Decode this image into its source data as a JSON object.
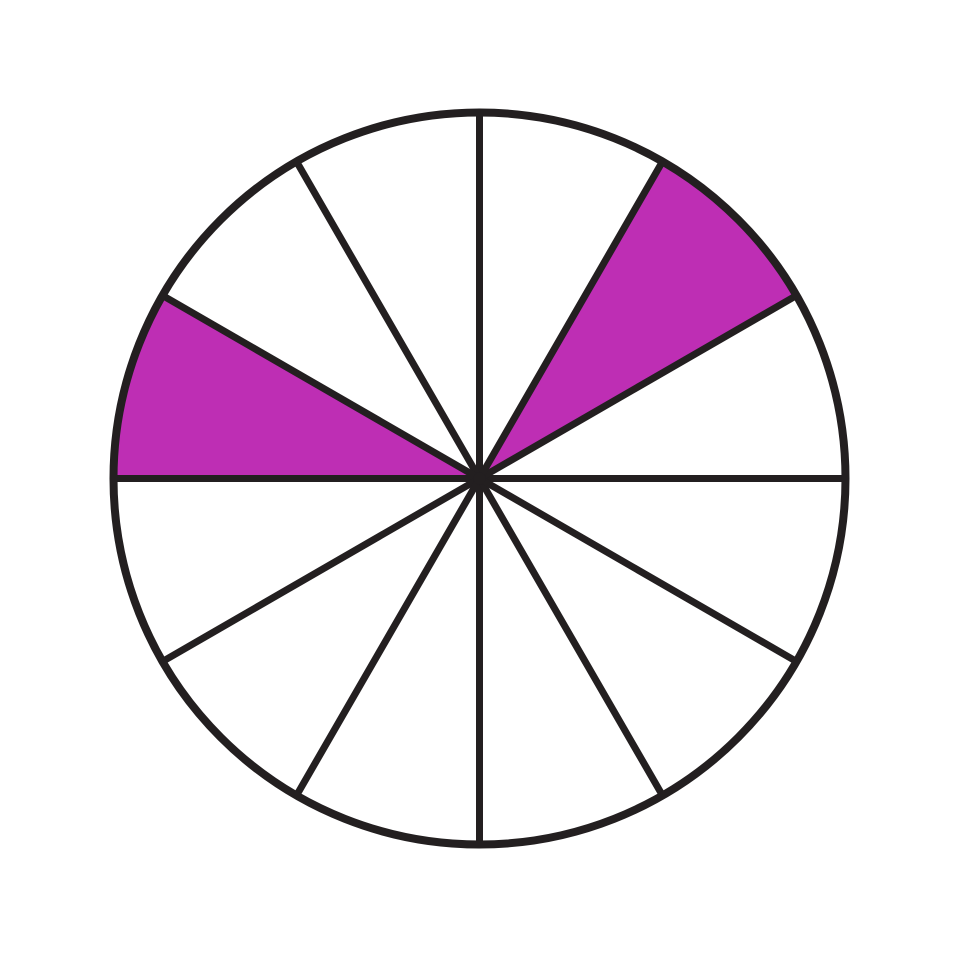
{
  "fraction_circle": {
    "total_parts": 12,
    "shaded_parts": 2,
    "shaded_sectors": [
      1,
      5
    ],
    "colors": {
      "shaded": "#BE2EB4",
      "unshaded": "#FFFFFF",
      "stroke": "#231F20"
    }
  }
}
